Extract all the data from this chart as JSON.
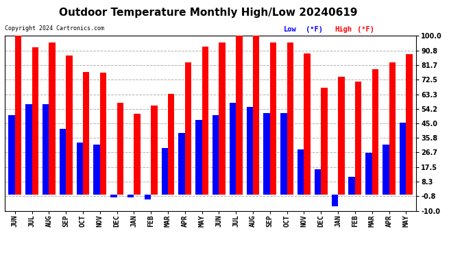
{
  "title": "Outdoor Temperature Monthly High/Low 20240619",
  "copyright": "Copyright 2024 Cartronics.com",
  "legend_low": "Low",
  "legend_high": "High",
  "legend_unit": "(°F)",
  "months": [
    "JUN",
    "JUL",
    "AUG",
    "SEP",
    "OCT",
    "NOV",
    "DEC",
    "JAN",
    "FEB",
    "MAR",
    "APR",
    "MAY",
    "JUN",
    "JUL",
    "AUG",
    "SEP",
    "OCT",
    "NOV",
    "DEC",
    "JAN",
    "FEB",
    "MAR",
    "APR",
    "MAY"
  ],
  "high_values": [
    100.0,
    93.0,
    96.0,
    87.5,
    77.5,
    77.0,
    58.0,
    51.0,
    56.0,
    63.5,
    83.5,
    93.5,
    96.0,
    100.5,
    100.5,
    96.0,
    96.0,
    89.0,
    67.5,
    74.5,
    71.5,
    79.0,
    83.5,
    88.5
  ],
  "low_values": [
    50.0,
    57.0,
    57.0,
    41.5,
    33.0,
    31.5,
    -1.5,
    -1.5,
    -3.0,
    29.5,
    39.0,
    47.0,
    50.0,
    58.0,
    55.5,
    51.5,
    51.5,
    28.5,
    16.0,
    -7.0,
    11.5,
    26.5,
    31.5,
    45.5
  ],
  "ylim_min": -10.0,
  "ylim_max": 100.0,
  "yticks": [
    100.0,
    90.8,
    81.7,
    72.5,
    63.3,
    54.2,
    45.0,
    35.8,
    26.7,
    17.5,
    8.3,
    -0.8,
    -10.0
  ],
  "bar_color_high": "#ff0000",
  "bar_color_low": "#0000ff",
  "background_color": "#ffffff",
  "grid_color": "#b0b0b0",
  "title_fontsize": 11,
  "tick_fontsize": 7,
  "copyright_fontsize": 6,
  "legend_fontsize": 7.5,
  "bar_width": 0.38
}
